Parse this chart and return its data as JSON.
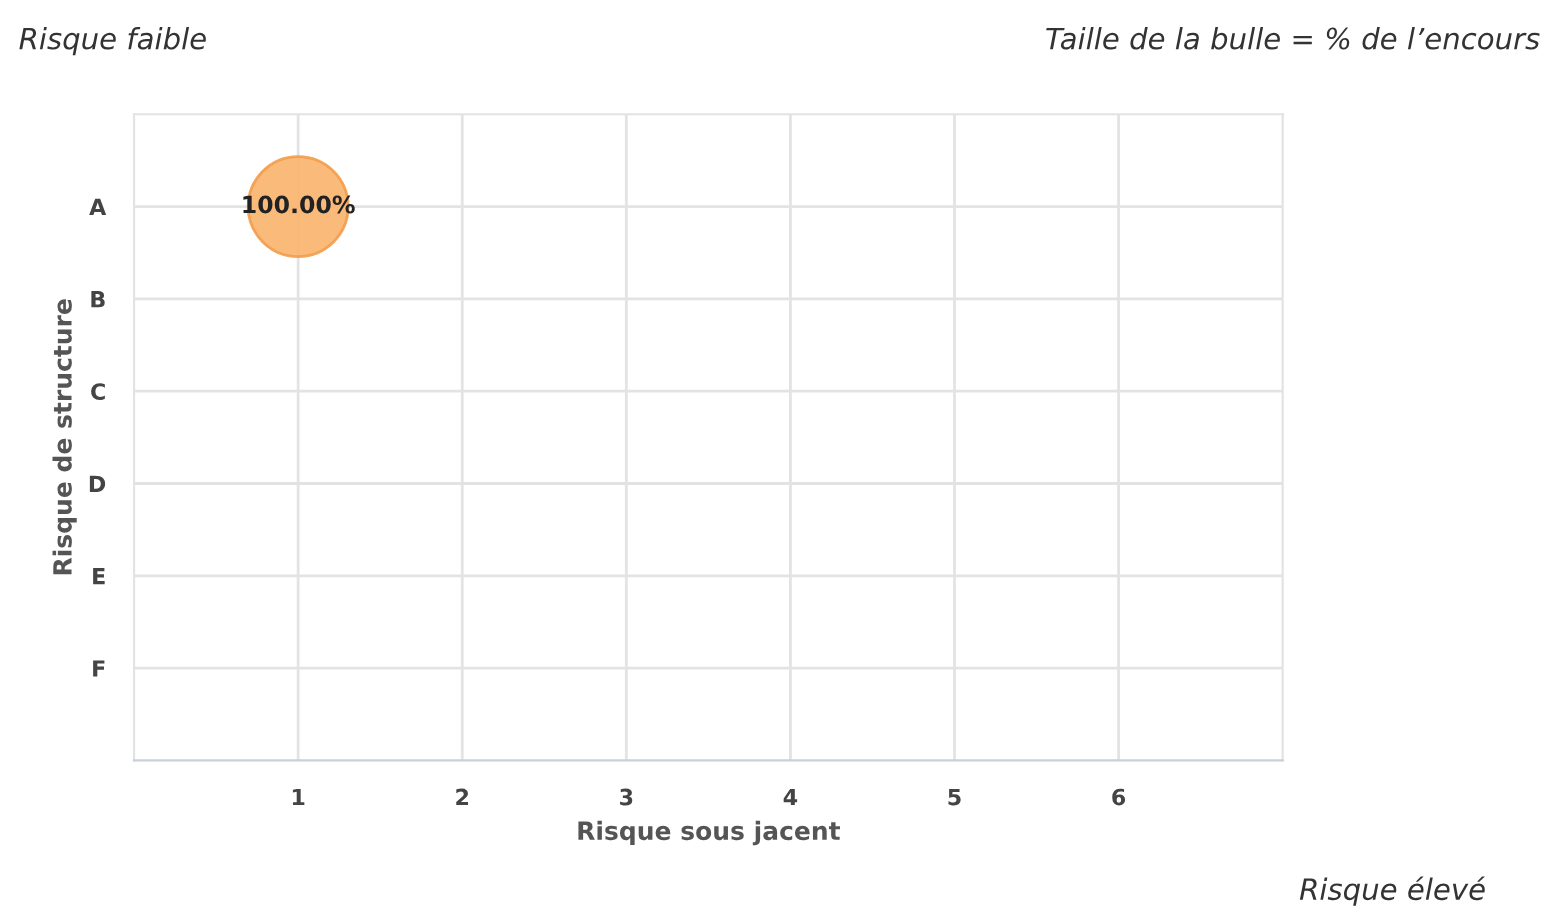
{
  "chart_data": {
    "type": "bubble",
    "orientation": "horizontal",
    "xlabel": "Risque sous jacent",
    "ylabel": "Risque de structure",
    "categories": [
      "A",
      "B",
      "C",
      "D",
      "E",
      "F"
    ],
    "values": [
      1,
      null,
      null,
      null,
      null,
      null
    ],
    "sizes": [
      1,
      null,
      null,
      null,
      null,
      null
    ],
    "value_labels": [
      "100.00%",
      null,
      null,
      null,
      null,
      null
    ],
    "color": "#f9b26c",
    "xlim": [
      0,
      7
    ],
    "xticks": [
      1,
      2,
      3,
      4,
      5,
      6
    ],
    "grid": true,
    "annotations": [
      "Risque faible",
      "Taille de la bulle = % de l’encours",
      "Risque élevé"
    ]
  }
}
